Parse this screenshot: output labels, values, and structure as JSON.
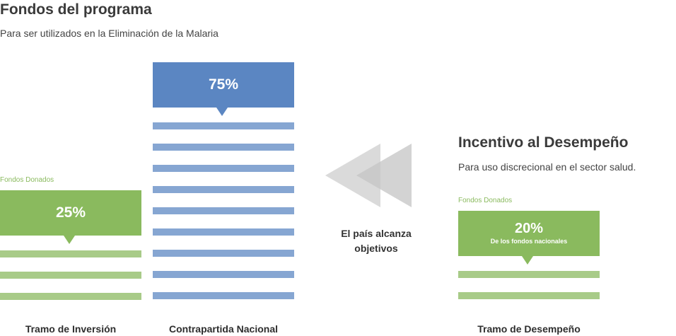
{
  "header": {
    "title": "Fondos del programa",
    "subtitle": "Para ser utilizados en la Eliminación de la Malaria"
  },
  "investment": {
    "small_label": "Fondos Donados",
    "percent": "25%",
    "label": "Tramo de Inversión"
  },
  "counterpart": {
    "percent": "75%",
    "label": "Contrapartida Nacional"
  },
  "arrow": {
    "text": "El país alcanza objetivos"
  },
  "performance": {
    "heading": "Incentivo al Desempeño",
    "subheading": "Para uso discrecional en el sector salud.",
    "small_label": "Fondos Donados",
    "percent": "20%",
    "note": "De los fondos nacionales",
    "label": "Tramo de Desempeño"
  },
  "colors": {
    "green": "#8aba5e",
    "green_light": "#a8cb88",
    "blue": "#5b86c2",
    "blue_light": "#86a6d2",
    "arrow_gray": "#c8c8c8"
  }
}
